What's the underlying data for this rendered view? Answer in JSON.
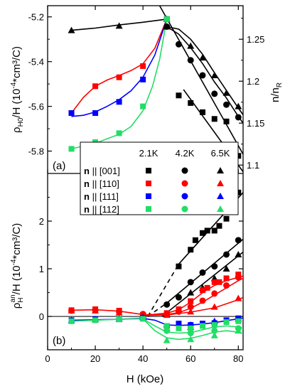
{
  "chart_data": [
    {
      "panel": "top",
      "type": "scatter",
      "panel_label": "(a)",
      "ylabel_left": {
        "base": "ρ",
        "sub": "H0",
        "rest": "/H (10",
        "sup": "-4",
        "rest2": "*cm³/C)"
      },
      "ylabel_right": {
        "base": "n/n",
        "sub": "R"
      },
      "xlim": [
        0,
        82
      ],
      "ylim": [
        -5.9,
        -5.15
      ],
      "ylim_right": [
        1.09,
        1.29
      ],
      "yticks": [
        "-5.2",
        "-5.4",
        "-5.6",
        "-5.8"
      ],
      "yticks_values": [
        -5.2,
        -5.4,
        -5.6,
        -5.8
      ],
      "yticks_right": [
        "1.25",
        "1.2",
        "1.15",
        "1.1"
      ],
      "yticks_right_values": [
        1.25,
        1.2,
        1.15,
        1.1
      ],
      "series": [
        {
          "key": "001_65K_top",
          "color": "#000000",
          "marker": "triangle",
          "x": [
            10,
            30,
            50
          ],
          "y": [
            -5.26,
            -5.24,
            -5.21
          ]
        },
        {
          "key": "110_21K_top",
          "color": "#ff0000",
          "marker": "square",
          "x": [
            10,
            20,
            30,
            40,
            50
          ],
          "y": [
            -5.63,
            -5.51,
            -5.47,
            -5.42,
            -5.21
          ]
        },
        {
          "key": "111_21K_top",
          "color": "#0000ff",
          "marker": "square",
          "x": [
            10,
            20,
            30,
            40,
            50
          ],
          "y": [
            -5.63,
            -5.63,
            -5.58,
            -5.48,
            -5.21
          ]
        },
        {
          "key": "112_21K_top",
          "color": "#22dd66",
          "marker": "square",
          "x": [
            10,
            20,
            30,
            40,
            50
          ],
          "y": [
            -5.79,
            -5.76,
            -5.72,
            -5.6,
            -5.21
          ]
        }
      ],
      "right_series": [
        {
          "key": "nR_21K",
          "color": "#000000",
          "marker": "square",
          "x": [
            55,
            60,
            65,
            70,
            75,
            80
          ],
          "y": [
            1.183,
            1.174,
            1.163,
            1.155,
            1.152,
            1.111
          ]
        },
        {
          "key": "nR_42K",
          "color": "#000000",
          "marker": "circle",
          "x": [
            50,
            55,
            60,
            65,
            70,
            75,
            80
          ],
          "y": [
            1.265,
            1.244,
            1.225,
            1.207,
            1.185,
            1.172,
            1.157
          ]
        },
        {
          "key": "nR_65K",
          "color": "#000000",
          "marker": "triangle",
          "x": [
            50,
            60,
            65,
            70,
            75,
            80
          ],
          "y": [
            1.265,
            1.242,
            1.228,
            1.207,
            1.186,
            1.17
          ]
        }
      ],
      "curves_left": [
        {
          "color": "#000000",
          "x": [
            10,
            20,
            30,
            40,
            50
          ],
          "y": [
            -5.26,
            -5.25,
            -5.236,
            -5.224,
            -5.21
          ]
        },
        {
          "color": "#ff0000",
          "x": [
            10,
            15,
            20,
            25,
            30,
            35,
            40,
            45,
            50
          ],
          "y": [
            -5.63,
            -5.56,
            -5.51,
            -5.482,
            -5.462,
            -5.44,
            -5.41,
            -5.34,
            -5.21
          ]
        },
        {
          "color": "#0000ff",
          "x": [
            10,
            15,
            20,
            25,
            30,
            35,
            40,
            45,
            50
          ],
          "y": [
            -5.645,
            -5.64,
            -5.625,
            -5.6,
            -5.57,
            -5.53,
            -5.47,
            -5.37,
            -5.21
          ]
        },
        {
          "color": "#22dd66",
          "x": [
            10,
            20,
            30,
            35,
            40,
            44,
            47,
            50
          ],
          "y": [
            -5.79,
            -5.765,
            -5.725,
            -5.69,
            -5.62,
            -5.51,
            -5.39,
            -5.21
          ]
        }
      ],
      "curves_right": [
        {
          "color": "#000000",
          "x": [
            47,
            82
          ],
          "y": [
            1.29,
            1.113
          ]
        },
        {
          "color": "#000000",
          "x": [
            50,
            55,
            60,
            65,
            70,
            75,
            80,
            82
          ],
          "y": [
            1.265,
            1.256,
            1.24,
            1.221,
            1.199,
            1.18,
            1.158,
            1.15
          ]
        },
        {
          "color": "#000000",
          "x": [
            50,
            55,
            60,
            65,
            70,
            75,
            80,
            82
          ],
          "y": [
            1.265,
            1.262,
            1.25,
            1.232,
            1.21,
            1.189,
            1.168,
            1.16
          ]
        },
        {
          "color": "#000000",
          "x": [
            57,
            82
          ],
          "y": [
            1.19,
            1.092
          ]
        }
      ]
    },
    {
      "panel": "bottom",
      "type": "scatter",
      "panel_label": "(b)",
      "xlabel": "H (kOe)",
      "ylabel": {
        "base": "ρ",
        "sub": "H",
        "sup1": "an",
        "rest": "/H (10",
        "sup": "-4",
        "rest2": "*cm³/C)"
      },
      "xlim": [
        0,
        82
      ],
      "ylim": [
        -0.7,
        3.0
      ],
      "xticks": [
        "0",
        "20",
        "40",
        "60",
        "80"
      ],
      "xticks_values": [
        0,
        20,
        40,
        60,
        80
      ],
      "yticks": [
        "0",
        "1",
        "2"
      ],
      "yticks_values": [
        0,
        1,
        2
      ],
      "series": [
        {
          "key": "001_21K",
          "color": "#000000",
          "marker": "square",
          "x": [
            55,
            60,
            62,
            65,
            67,
            70,
            72,
            75,
            80
          ],
          "y": [
            1.05,
            1.4,
            1.6,
            1.75,
            1.8,
            1.8,
            1.9,
            2.05,
            2.6
          ]
        },
        {
          "key": "001_42K",
          "color": "#000000",
          "marker": "circle",
          "x": [
            50,
            55,
            60,
            65,
            70,
            75,
            80
          ],
          "y": [
            0.25,
            0.4,
            0.72,
            0.92,
            1.05,
            1.3,
            1.6
          ]
        },
        {
          "key": "001_65K",
          "color": "#000000",
          "marker": "triangle",
          "x": [
            50,
            60,
            65,
            70,
            75,
            80
          ],
          "y": [
            0.05,
            0.5,
            0.6,
            0.8,
            1.0,
            1.3
          ]
        },
        {
          "key": "110_21K",
          "color": "#ff0000",
          "marker": "square",
          "x": [
            10,
            20,
            30,
            40,
            50,
            55,
            60,
            65,
            67,
            70,
            72,
            75,
            80
          ],
          "y": [
            0.13,
            0.15,
            0.12,
            0.03,
            0.07,
            0.15,
            0.32,
            0.55,
            0.6,
            0.72,
            0.72,
            0.8,
            0.88
          ]
        },
        {
          "key": "110_42K",
          "color": "#ff0000",
          "marker": "circle",
          "x": [
            10,
            20,
            30,
            40,
            50,
            55,
            60,
            65,
            70,
            75,
            80
          ],
          "y": [
            0.12,
            0.13,
            0.1,
            0.05,
            0.05,
            0.1,
            0.2,
            0.33,
            0.48,
            0.65,
            0.82
          ]
        },
        {
          "key": "110_65K",
          "color": "#ff0000",
          "marker": "triangle",
          "x": [
            10,
            20,
            30,
            40,
            50,
            60,
            70,
            80
          ],
          "y": [
            0.12,
            0.12,
            0.08,
            0.03,
            0.03,
            0.1,
            0.2,
            0.38
          ]
        },
        {
          "key": "111_21K",
          "color": "#0000ff",
          "marker": "square",
          "x": [
            10,
            20,
            30,
            40,
            50,
            55,
            60,
            65,
            70,
            75,
            80
          ],
          "y": [
            -0.08,
            -0.06,
            -0.06,
            -0.03,
            -0.2,
            -0.15,
            -0.18,
            -0.15,
            -0.14,
            -0.08,
            -0.04
          ]
        },
        {
          "key": "111_42K",
          "color": "#0000ff",
          "marker": "circle",
          "x": [
            50,
            60,
            70,
            80
          ],
          "y": [
            -0.22,
            -0.18,
            -0.15,
            -0.05
          ]
        },
        {
          "key": "111_65K",
          "color": "#0000ff",
          "marker": "triangle",
          "x": [
            10,
            20,
            30,
            40,
            50,
            60,
            70,
            80
          ],
          "y": [
            -0.08,
            -0.06,
            -0.05,
            -0.02,
            -0.25,
            -0.22,
            -0.1,
            -0.05
          ]
        },
        {
          "key": "112_21K",
          "color": "#22dd66",
          "marker": "square",
          "x": [
            10,
            20,
            30,
            40,
            50,
            55,
            60,
            65,
            70,
            75,
            80
          ],
          "y": [
            -0.1,
            -0.08,
            -0.06,
            -0.05,
            -0.2,
            -0.25,
            -0.25,
            -0.2,
            -0.18,
            -0.12,
            -0.1
          ]
        },
        {
          "key": "112_42K",
          "color": "#22dd66",
          "marker": "circle",
          "x": [
            50,
            60,
            70,
            80
          ],
          "y": [
            -0.3,
            -0.35,
            -0.3,
            -0.25
          ]
        },
        {
          "key": "112_65K",
          "color": "#22dd66",
          "marker": "triangle",
          "x": [
            50,
            60,
            70,
            80
          ],
          "y": [
            -0.5,
            -0.48,
            -0.4,
            -0.3
          ]
        }
      ],
      "curves": [
        {
          "color": "#000000",
          "dash": true,
          "x": [
            42,
            55
          ],
          "y": [
            0.0,
            1.1
          ]
        },
        {
          "color": "#000000",
          "x": [
            55,
            82
          ],
          "y": [
            1.1,
            2.6
          ]
        },
        {
          "color": "#000000",
          "dash": true,
          "x": [
            42,
            50
          ],
          "y": [
            0.0,
            0.28
          ]
        },
        {
          "color": "#000000",
          "x": [
            50,
            82
          ],
          "y": [
            0.28,
            1.62
          ]
        },
        {
          "color": "#000000",
          "x": [
            48,
            82
          ],
          "y": [
            0.0,
            1.35
          ]
        },
        {
          "color": "#ff0000",
          "x": [
            40,
            50,
            55,
            60,
            65,
            70,
            75,
            80,
            82
          ],
          "y": [
            0.02,
            0.07,
            0.14,
            0.3,
            0.5,
            0.65,
            0.75,
            0.82,
            0.85
          ]
        },
        {
          "color": "#ff0000",
          "x": [
            10,
            20,
            30,
            40,
            45,
            50,
            55,
            60,
            65,
            70,
            75,
            80,
            82
          ],
          "y": [
            0.13,
            0.14,
            0.11,
            0.04,
            0.03,
            0.04,
            0.08,
            0.17,
            0.3,
            0.45,
            0.6,
            0.75,
            0.8
          ]
        },
        {
          "color": "#ff0000",
          "x": [
            40,
            50,
            60,
            70,
            80,
            82
          ],
          "y": [
            0.02,
            0.03,
            0.09,
            0.18,
            0.35,
            0.4
          ]
        },
        {
          "color": "#0000ff",
          "x": [
            10,
            20,
            30,
            40,
            45,
            50,
            55,
            60,
            65,
            70,
            75,
            80,
            82
          ],
          "y": [
            -0.08,
            -0.07,
            -0.06,
            -0.04,
            -0.08,
            -0.18,
            -0.19,
            -0.18,
            -0.16,
            -0.13,
            -0.09,
            -0.05,
            -0.03
          ]
        },
        {
          "color": "#22dd66",
          "x": [
            10,
            20,
            30,
            40,
            45,
            50,
            55,
            60,
            65,
            70,
            75,
            80,
            82
          ],
          "y": [
            -0.1,
            -0.08,
            -0.06,
            -0.05,
            -0.2,
            -0.33,
            -0.35,
            -0.34,
            -0.28,
            -0.22,
            -0.2,
            -0.22,
            -0.25
          ]
        },
        {
          "color": "#22dd66",
          "x": [
            40,
            45,
            50,
            55,
            60,
            65,
            70,
            75,
            80,
            82
          ],
          "y": [
            -0.05,
            -0.3,
            -0.45,
            -0.48,
            -0.46,
            -0.4,
            -0.33,
            -0.3,
            -0.33,
            -0.36
          ]
        }
      ]
    }
  ],
  "legend": {
    "headers": [
      "2.1K",
      "4.2K",
      "6.5K"
    ],
    "rows": [
      {
        "bold": "n",
        "label": " || [001]",
        "color": "#000000"
      },
      {
        "bold": "n",
        "label": " || [110]",
        "color": "#ff0000"
      },
      {
        "bold": "n",
        "label": " || [111]",
        "color": "#0000ff"
      },
      {
        "bold": "n",
        "label": " || [112]",
        "color": "#22dd66"
      }
    ],
    "markers": [
      "square",
      "circle",
      "triangle"
    ]
  }
}
